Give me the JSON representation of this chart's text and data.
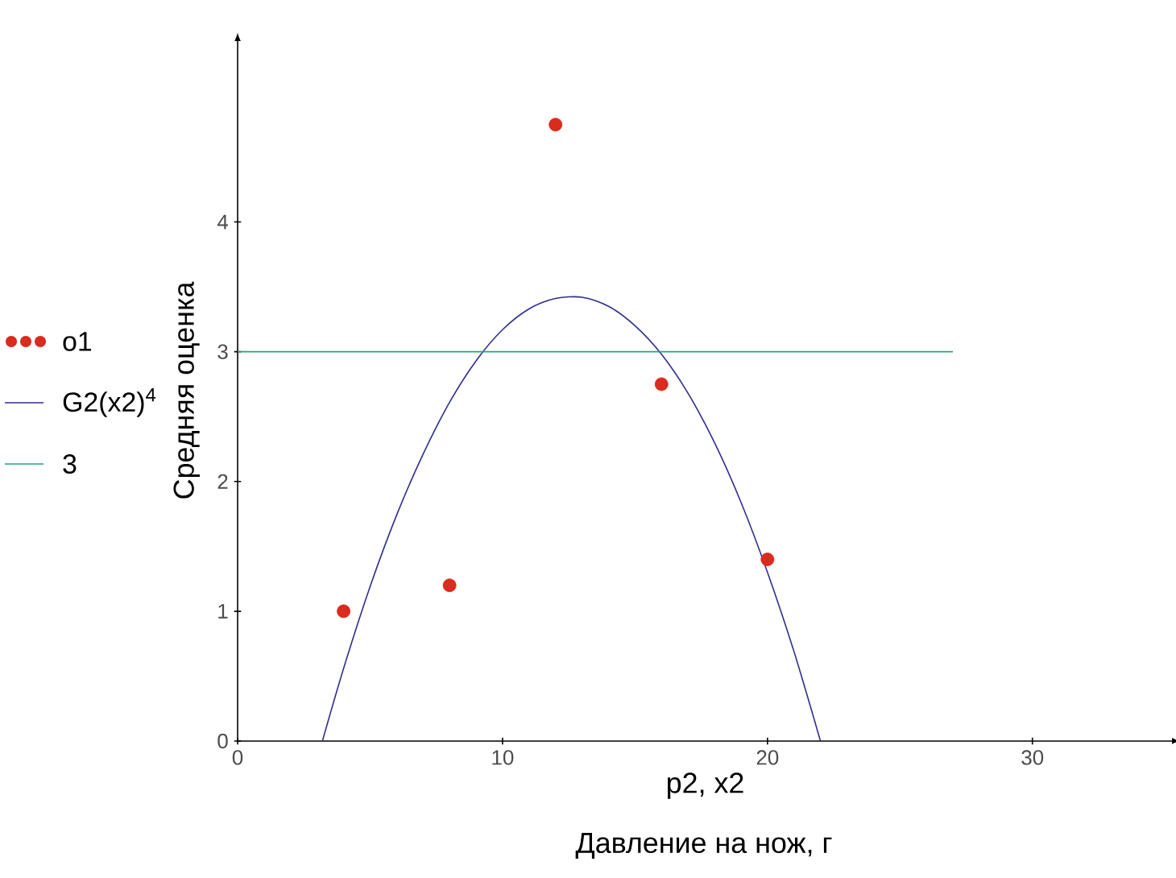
{
  "chart_data": {
    "type": "scatter",
    "xlabel": "p2, x2",
    "ylabel": "Средняя оценка",
    "annotations": [
      "Давление на нож, г"
    ],
    "xlim": [
      0,
      35.3
    ],
    "ylim": [
      0,
      5.4
    ],
    "xticks": [
      0,
      10,
      20,
      30
    ],
    "yticks": [
      0,
      1,
      2,
      3,
      4
    ],
    "grid": false,
    "legend": "left",
    "series": [
      {
        "name": "o1",
        "marker": "circle",
        "color": "#d92b1e",
        "x": [
          4,
          8,
          12,
          16,
          20
        ],
        "values": [
          1.0,
          1.2,
          4.75,
          2.75,
          1.4
        ]
      },
      {
        "name": "G2(x2)$^{4}$",
        "type": "line",
        "marker": "none",
        "color": "#2e2e8f",
        "x": [
          3.2,
          4,
          5,
          6,
          7,
          8,
          9,
          10,
          11,
          12,
          13,
          14,
          15,
          16,
          17,
          18,
          19,
          20,
          21,
          22
        ],
        "values": [
          0,
          0.56,
          1.19,
          1.74,
          2.21,
          2.61,
          2.93,
          3.17,
          3.33,
          3.41,
          3.42,
          3.35,
          3.2,
          2.98,
          2.68,
          2.3,
          1.84,
          1.3,
          0.69,
          0
        ]
      },
      {
        "name": "3",
        "type": "line",
        "marker": "none",
        "color": "#1fa77a",
        "x": [
          0,
          27
        ],
        "values": [
          3,
          3
        ]
      }
    ]
  }
}
